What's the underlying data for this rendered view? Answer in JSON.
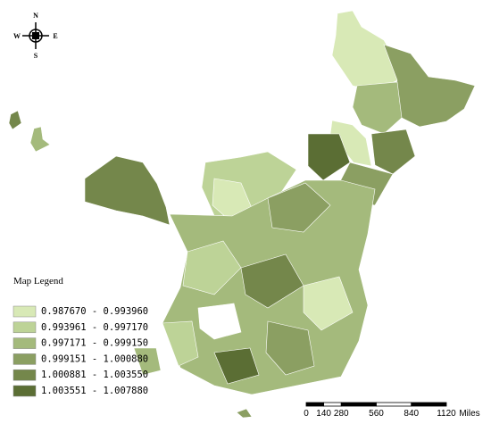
{
  "compass": {
    "north": "N",
    "south": "S",
    "west": "W",
    "east": "E"
  },
  "legend": {
    "title": "Map Legend",
    "items": [
      {
        "label": "0.987670 - 0.993960",
        "color": "#d8e9b6"
      },
      {
        "label": "0.993961 - 0.997170",
        "color": "#bdd397"
      },
      {
        "label": "0.997171 - 0.999150",
        "color": "#a4ba7c"
      },
      {
        "label": "0.999151 - 1.000880",
        "color": "#8b9f62"
      },
      {
        "label": "1.000881 - 1.003550",
        "color": "#74874b"
      },
      {
        "label": "1.003551 - 1.007880",
        "color": "#5b6e34"
      }
    ]
  },
  "scale_bar": {
    "ticks": [
      0,
      140,
      280,
      560,
      840,
      1120
    ],
    "unit": "Miles"
  }
}
